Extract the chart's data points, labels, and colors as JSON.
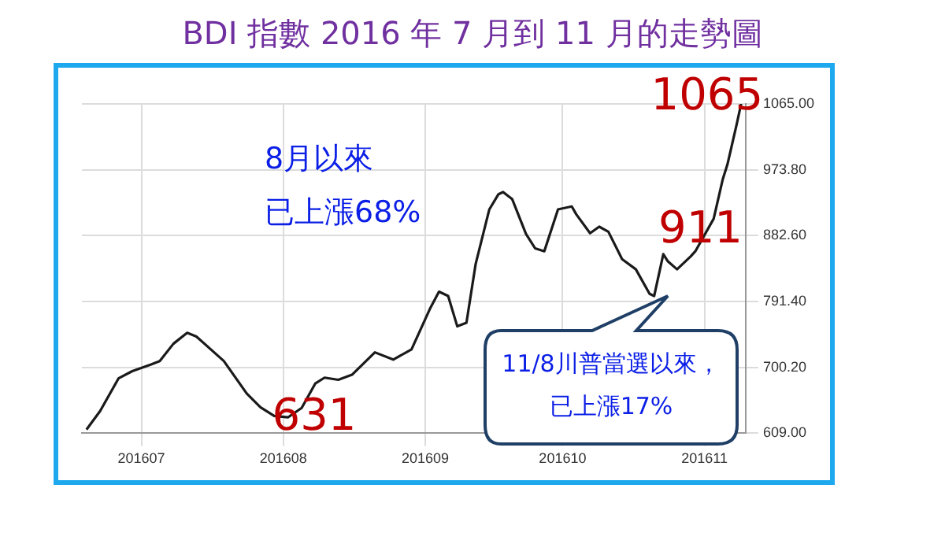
{
  "chart_data": {
    "type": "line",
    "title": "BDI 指數 2016 年 7 月到 11 月的走勢圖",
    "x": [
      "2016-06-19",
      "2016-06-22",
      "2016-06-26",
      "2016-06-29",
      "2016-07-03",
      "2016-07-05",
      "2016-07-08",
      "2016-07-11",
      "2016-07-13",
      "2016-07-19",
      "2016-07-24",
      "2016-07-27",
      "2016-07-30",
      "2016-08-02",
      "2016-08-05",
      "2016-08-08",
      "2016-08-10",
      "2016-08-13",
      "2016-08-16",
      "2016-08-21",
      "2016-08-25",
      "2016-08-29",
      "2016-09-02",
      "2016-09-04",
      "2016-09-06",
      "2016-09-08",
      "2016-09-10",
      "2016-09-12",
      "2016-09-15",
      "2016-09-17",
      "2016-09-18",
      "2016-09-20",
      "2016-09-23",
      "2016-09-25",
      "2016-09-27",
      "2016-09-30",
      "2016-10-03",
      "2016-10-04",
      "2016-10-07",
      "2016-10-09",
      "2016-10-11",
      "2016-10-14",
      "2016-10-17",
      "2016-10-20",
      "2016-10-21",
      "2016-10-23",
      "2016-10-24",
      "2016-10-26",
      "2016-10-29",
      "2016-10-30",
      "2016-11-03",
      "2016-11-05",
      "2016-11-06",
      "2016-11-08",
      "2016-11-09"
    ],
    "series": [
      {
        "color": "#1a1a1a",
        "values": [
          614,
          640,
          685,
          695,
          704,
          709,
          733,
          748,
          743,
          709,
          664,
          645,
          633,
          631,
          644,
          678,
          686,
          683,
          690,
          721,
          711,
          725,
          781,
          805,
          799,
          757,
          762,
          843,
          919,
          940,
          943,
          933,
          885,
          865,
          861,
          919,
          923,
          912,
          886,
          895,
          888,
          850,
          836,
          802,
          799,
          857,
          847,
          836,
          854,
          861,
          906,
          961,
          981,
          1036,
          1065
        ]
      }
    ],
    "xlim": [
      "2016-06-18",
      "2016-11-10"
    ],
    "xticks": [
      {
        "value": "2016-07-01",
        "label": "201607"
      },
      {
        "value": "2016-08-01",
        "label": "201608"
      },
      {
        "value": "2016-09-01",
        "label": "201609"
      },
      {
        "value": "2016-10-01",
        "label": "201610"
      },
      {
        "value": "2016-11-01",
        "label": "201611"
      }
    ],
    "ylim": [
      609,
      1065
    ],
    "yticks": [
      {
        "value": 609,
        "label": "609.00"
      },
      {
        "value": 700.2,
        "label": "700.20"
      },
      {
        "value": 791.4,
        "label": "791.40"
      },
      {
        "value": 882.6,
        "label": "882.60"
      },
      {
        "value": 973.8,
        "label": "973.80"
      },
      {
        "value": 1065,
        "label": "1065.00"
      }
    ],
    "grid": true,
    "legend": false,
    "marker": "none",
    "line_style": "solid",
    "annotations": [
      {
        "text": "631",
        "x": "2016-08-02",
        "y": 631
      },
      {
        "text": "1065",
        "x": "2016-11-09",
        "y": 1065
      },
      "8月以來",
      "已上漲68%",
      "911",
      "11/8川普當選以來，已上漲17%"
    ]
  }
}
